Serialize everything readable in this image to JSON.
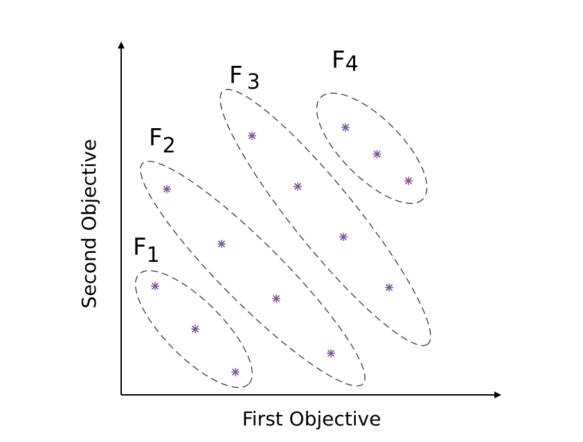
{
  "axes": {
    "x_title": "First Objective",
    "y_title": "Second Objective"
  },
  "fronts": [
    {
      "label": "F",
      "index": "1",
      "points": [
        [
          1,
          3
        ],
        [
          2,
          2
        ],
        [
          3,
          1
        ]
      ]
    },
    {
      "label": "F",
      "index": "2",
      "points": [
        [
          1,
          4
        ],
        [
          2,
          3
        ],
        [
          3,
          2
        ],
        [
          4,
          1
        ]
      ]
    },
    {
      "label": "F",
      "index": "3",
      "points": [
        [
          1,
          4
        ],
        [
          2,
          3
        ],
        [
          3,
          2
        ],
        [
          4,
          1
        ]
      ]
    },
    {
      "label": "F",
      "index": "4",
      "points": [
        [
          1,
          3
        ],
        [
          2,
          2
        ],
        [
          3,
          1
        ]
      ]
    }
  ],
  "colors": {
    "marker_plus": "#d04a5a",
    "marker_cross": "#4a5ec8",
    "ellipse": "#333333",
    "axis": "#000000"
  }
}
